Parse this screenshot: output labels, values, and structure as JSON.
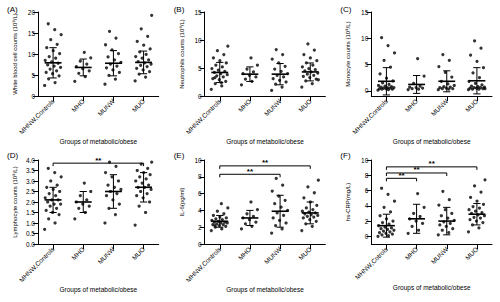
{
  "chart_data": [
    {
      "type": "scatter",
      "title": "(A)",
      "x_label": "Groups of metabolic/obese",
      "y_label": "White blood cell counts (10⁹/L)",
      "categories": [
        "MHNW,Controls",
        "MHO",
        "MUNW",
        "MUO"
      ],
      "values": [
        [
          2.5,
          3.2,
          4.1,
          4.8,
          5.3,
          5.6,
          6.0,
          6.4,
          6.8,
          7.1,
          7.4,
          7.8,
          8.1,
          8.5,
          9.0,
          9.4,
          10.1,
          10.8,
          11.5,
          12.3,
          13.4,
          14.6,
          15.8,
          17.2
        ],
        [
          3.5,
          4.6,
          5.4,
          6.0,
          6.5,
          7.0,
          7.6,
          8.3,
          9.1,
          10.4
        ],
        [
          2.8,
          4.0,
          4.9,
          5.6,
          6.2,
          6.7,
          7.1,
          7.6,
          8.0,
          8.6,
          9.3,
          10.1,
          11.0,
          12.2,
          13.8,
          15.4
        ],
        [
          3.6,
          4.5,
          5.2,
          5.8,
          6.2,
          6.6,
          7.0,
          7.3,
          7.6,
          7.9,
          8.2,
          8.6,
          9.0,
          9.4,
          9.9,
          10.5,
          11.2,
          12.1,
          13.0,
          14.2,
          16.0,
          19.2
        ]
      ],
      "mean": [
        7.9,
        6.8,
        7.8,
        8.0
      ],
      "sd": [
        3.6,
        2.0,
        3.0,
        2.7
      ],
      "color": "#000000",
      "ylim": [
        0,
        20
      ],
      "yticks": [
        0,
        5,
        10,
        15,
        20
      ],
      "grid": false,
      "comparisons": []
    },
    {
      "type": "scatter",
      "title": "(B)",
      "x_label": "Groups of metabolic/obese",
      "y_label": "Neutrophils counts (10⁹/L)",
      "categories": [
        "MHNW,Controls",
        "MHO",
        "MUNW",
        "MUO"
      ],
      "values": [
        [
          1.2,
          1.8,
          2.2,
          2.6,
          2.9,
          3.1,
          3.4,
          3.6,
          3.8,
          4.0,
          4.2,
          4.4,
          4.6,
          4.9,
          5.2,
          5.5,
          5.9,
          6.3,
          6.8,
          7.4,
          8.1,
          8.9,
          2.4,
          3.3
        ],
        [
          2.0,
          2.6,
          3.0,
          3.4,
          3.7,
          4.0,
          4.3,
          4.8,
          5.5,
          6.8
        ],
        [
          1.0,
          1.6,
          2.1,
          2.5,
          2.8,
          3.1,
          3.4,
          3.7,
          4.0,
          4.4,
          4.8,
          5.3,
          5.9,
          6.6,
          7.4,
          8.3
        ],
        [
          1.6,
          2.2,
          2.7,
          3.0,
          3.3,
          3.5,
          3.7,
          3.9,
          4.1,
          4.3,
          4.5,
          4.7,
          4.9,
          5.2,
          5.5,
          5.9,
          6.3,
          6.8,
          7.4,
          8.2,
          9.3,
          2.9
        ]
      ],
      "mean": [
        4.2,
        3.9,
        3.9,
        4.3
      ],
      "sd": [
        1.8,
        1.3,
        1.9,
        1.6
      ],
      "color": "#000000",
      "ylim": [
        0,
        15
      ],
      "yticks": [
        0,
        5,
        10,
        15
      ],
      "grid": false,
      "comparisons": []
    },
    {
      "type": "scatter",
      "title": "(C)",
      "x_label": "Groups of metabolic/obese",
      "y_label": "Monocyte counts (10⁹/L)",
      "categories": [
        "MHNW,Controls",
        "MHO",
        "MUNW",
        "MUO"
      ],
      "values": [
        [
          0.1,
          0.2,
          0.3,
          0.3,
          0.4,
          0.4,
          0.5,
          0.5,
          0.6,
          0.6,
          0.7,
          0.8,
          0.9,
          1.0,
          1.2,
          1.5,
          1.9,
          2.4,
          3.2,
          4.5,
          5.8,
          7.2,
          8.6,
          10.1
        ],
        [
          0.2,
          0.3,
          0.4,
          0.5,
          0.6,
          0.7,
          0.9,
          1.4,
          2.8,
          6.1
        ],
        [
          0.2,
          0.3,
          0.4,
          0.4,
          0.5,
          0.6,
          0.7,
          0.8,
          1.0,
          1.3,
          1.8,
          2.6,
          3.5,
          4.6,
          5.8,
          6.9
        ],
        [
          0.2,
          0.3,
          0.3,
          0.4,
          0.5,
          0.5,
          0.6,
          0.6,
          0.7,
          0.8,
          0.9,
          1.1,
          1.4,
          1.8,
          2.5,
          3.4,
          4.4,
          5.6,
          6.8,
          8.1,
          9.5,
          0.4
        ]
      ],
      "mean": [
        1.8,
        1.2,
        1.8,
        1.9
      ],
      "sd": [
        2.6,
        1.7,
        2.0,
        2.5
      ],
      "color": "#000000",
      "ylim": [
        -1,
        15
      ],
      "yticks": [
        0,
        5,
        10,
        15
      ],
      "grid": false,
      "comparisons": []
    },
    {
      "type": "scatter",
      "title": "(D)",
      "x_label": "Groups of metabolic/obese",
      "y_label": "Lymphocyte counts (10⁹/L)",
      "categories": [
        "MHNW,Controls",
        "MHO",
        "MUNW",
        "MUO"
      ],
      "values": [
        [
          0.7,
          1.0,
          1.2,
          1.4,
          1.5,
          1.6,
          1.7,
          1.8,
          1.9,
          1.9,
          2.0,
          2.1,
          2.1,
          2.2,
          2.3,
          2.4,
          2.5,
          2.6,
          2.7,
          2.8,
          3.0,
          3.2,
          3.4,
          3.6
        ],
        [
          1.2,
          1.5,
          1.7,
          1.8,
          1.9,
          2.0,
          2.1,
          2.3,
          2.5,
          2.9
        ],
        [
          1.0,
          1.4,
          1.7,
          1.9,
          2.1,
          2.3,
          2.4,
          2.5,
          2.6,
          2.7,
          2.8,
          3.0,
          3.2,
          3.4,
          3.7,
          3.9
        ],
        [
          0.9,
          1.5,
          1.8,
          2.0,
          2.2,
          2.3,
          2.4,
          2.5,
          2.6,
          2.7,
          2.7,
          2.8,
          2.9,
          3.0,
          3.1,
          3.2,
          3.3,
          3.4,
          3.5,
          3.6,
          3.8,
          3.9
        ]
      ],
      "mean": [
        2.1,
        2.0,
        2.5,
        2.7
      ],
      "sd": [
        0.6,
        0.5,
        0.8,
        0.7
      ],
      "color": "#000000",
      "ylim": [
        0,
        4
      ],
      "yticks": [
        {
          "value": 0,
          "label": "0.0"
        },
        0.5,
        {
          "value": 1,
          "label": "1.0"
        },
        1.5,
        {
          "value": 2,
          "label": "2.0"
        },
        2.5,
        {
          "value": 3,
          "label": "3.0"
        },
        3.5,
        {
          "value": 4,
          "label": "4.0"
        }
      ],
      "grid": false,
      "comparisons": [
        {
          "groups": [
            "MHNW,Controls",
            "MUO"
          ],
          "y": 3.85,
          "label": "**"
        }
      ]
    },
    {
      "type": "scatter",
      "title": "(E)",
      "x_label": "Groups of metabolic/obese",
      "y_label": "IL-6(pg/ml)",
      "categories": [
        "MHNW,Controls",
        "MHO",
        "MUNW",
        "MUO"
      ],
      "values": [
        [
          1.6,
          1.8,
          2.0,
          2.1,
          2.2,
          2.3,
          2.3,
          2.4,
          2.5,
          2.5,
          2.6,
          2.6,
          2.7,
          2.8,
          2.9,
          3.0,
          3.1,
          3.2,
          3.4,
          3.6,
          3.9,
          4.3,
          4.8,
          2.2
        ],
        [
          1.8,
          2.1,
          2.4,
          2.6,
          2.9,
          3.1,
          3.3,
          3.6,
          4.1,
          5.0
        ],
        [
          1.3,
          1.8,
          2.2,
          2.5,
          2.8,
          3.1,
          3.4,
          3.7,
          4.0,
          4.4,
          4.8,
          5.2,
          5.7,
          6.3,
          7.0,
          7.8
        ],
        [
          1.6,
          2.1,
          2.4,
          2.7,
          2.9,
          3.1,
          3.2,
          3.3,
          3.4,
          3.5,
          3.6,
          3.7,
          3.8,
          3.9,
          4.1,
          4.3,
          4.6,
          5.0,
          5.5,
          6.1,
          6.8,
          7.6
        ]
      ],
      "mean": [
        2.7,
        3.1,
        3.9,
        3.7
      ],
      "sd": [
        0.7,
        0.9,
        1.9,
        1.3
      ],
      "color": "#000000",
      "ylim": [
        0,
        10
      ],
      "yticks": [
        0,
        2,
        4,
        6,
        8,
        10
      ],
      "grid": false,
      "comparisons": [
        {
          "groups": [
            "MHNW,Controls",
            "MUNW"
          ],
          "y": 8.3,
          "label": "**"
        },
        {
          "groups": [
            "MHNW,Controls",
            "MUO"
          ],
          "y": 9.3,
          "label": "**"
        }
      ]
    },
    {
      "type": "scatter",
      "title": "(F)",
      "x_label": "Groups of metabolic/obese",
      "y_label": "hs-CRP(mg/L)",
      "categories": [
        "MHNW,Cotrols",
        "MHO",
        "MUNW",
        "MUO"
      ],
      "values": [
        [
          0.0,
          0.1,
          0.2,
          0.3,
          0.4,
          0.5,
          0.6,
          0.7,
          0.8,
          0.9,
          1.0,
          1.1,
          1.2,
          1.4,
          1.6,
          1.8,
          2.0,
          2.3,
          2.7,
          3.2,
          3.8,
          4.6,
          5.5,
          6.3
        ],
        [
          0.4,
          0.8,
          1.3,
          1.7,
          2.0,
          2.3,
          2.6,
          3.0,
          3.8,
          5.6
        ],
        [
          0.2,
          0.5,
          0.8,
          1.0,
          1.3,
          1.5,
          1.7,
          1.9,
          2.1,
          2.4,
          2.7,
          3.0,
          3.5,
          4.1,
          4.8,
          5.9
        ],
        [
          0.6,
          1.1,
          1.5,
          1.8,
          2.0,
          2.2,
          2.4,
          2.5,
          2.7,
          2.8,
          3.0,
          3.1,
          3.3,
          3.5,
          3.7,
          3.9,
          4.2,
          4.6,
          5.1,
          5.8,
          6.6,
          7.4
        ]
      ],
      "mean": [
        1.4,
        2.3,
        2.0,
        2.9
      ],
      "sd": [
        1.5,
        1.9,
        1.8,
        1.4
      ],
      "color": "#000000",
      "ylim": [
        -1,
        10
      ],
      "yticks": [
        0,
        2,
        4,
        6,
        8,
        10
      ],
      "grid": false,
      "comparisons": [
        {
          "groups": [
            "MHNW,Cotrols",
            "MHO"
          ],
          "y": 7.6,
          "label": "**"
        },
        {
          "groups": [
            "MHNW,Cotrols",
            "MUNW"
          ],
          "y": 8.3,
          "label": "**"
        },
        {
          "groups": [
            "MHNW,Cotrols",
            "MUO"
          ],
          "y": 9.1,
          "label": "**"
        }
      ]
    }
  ]
}
